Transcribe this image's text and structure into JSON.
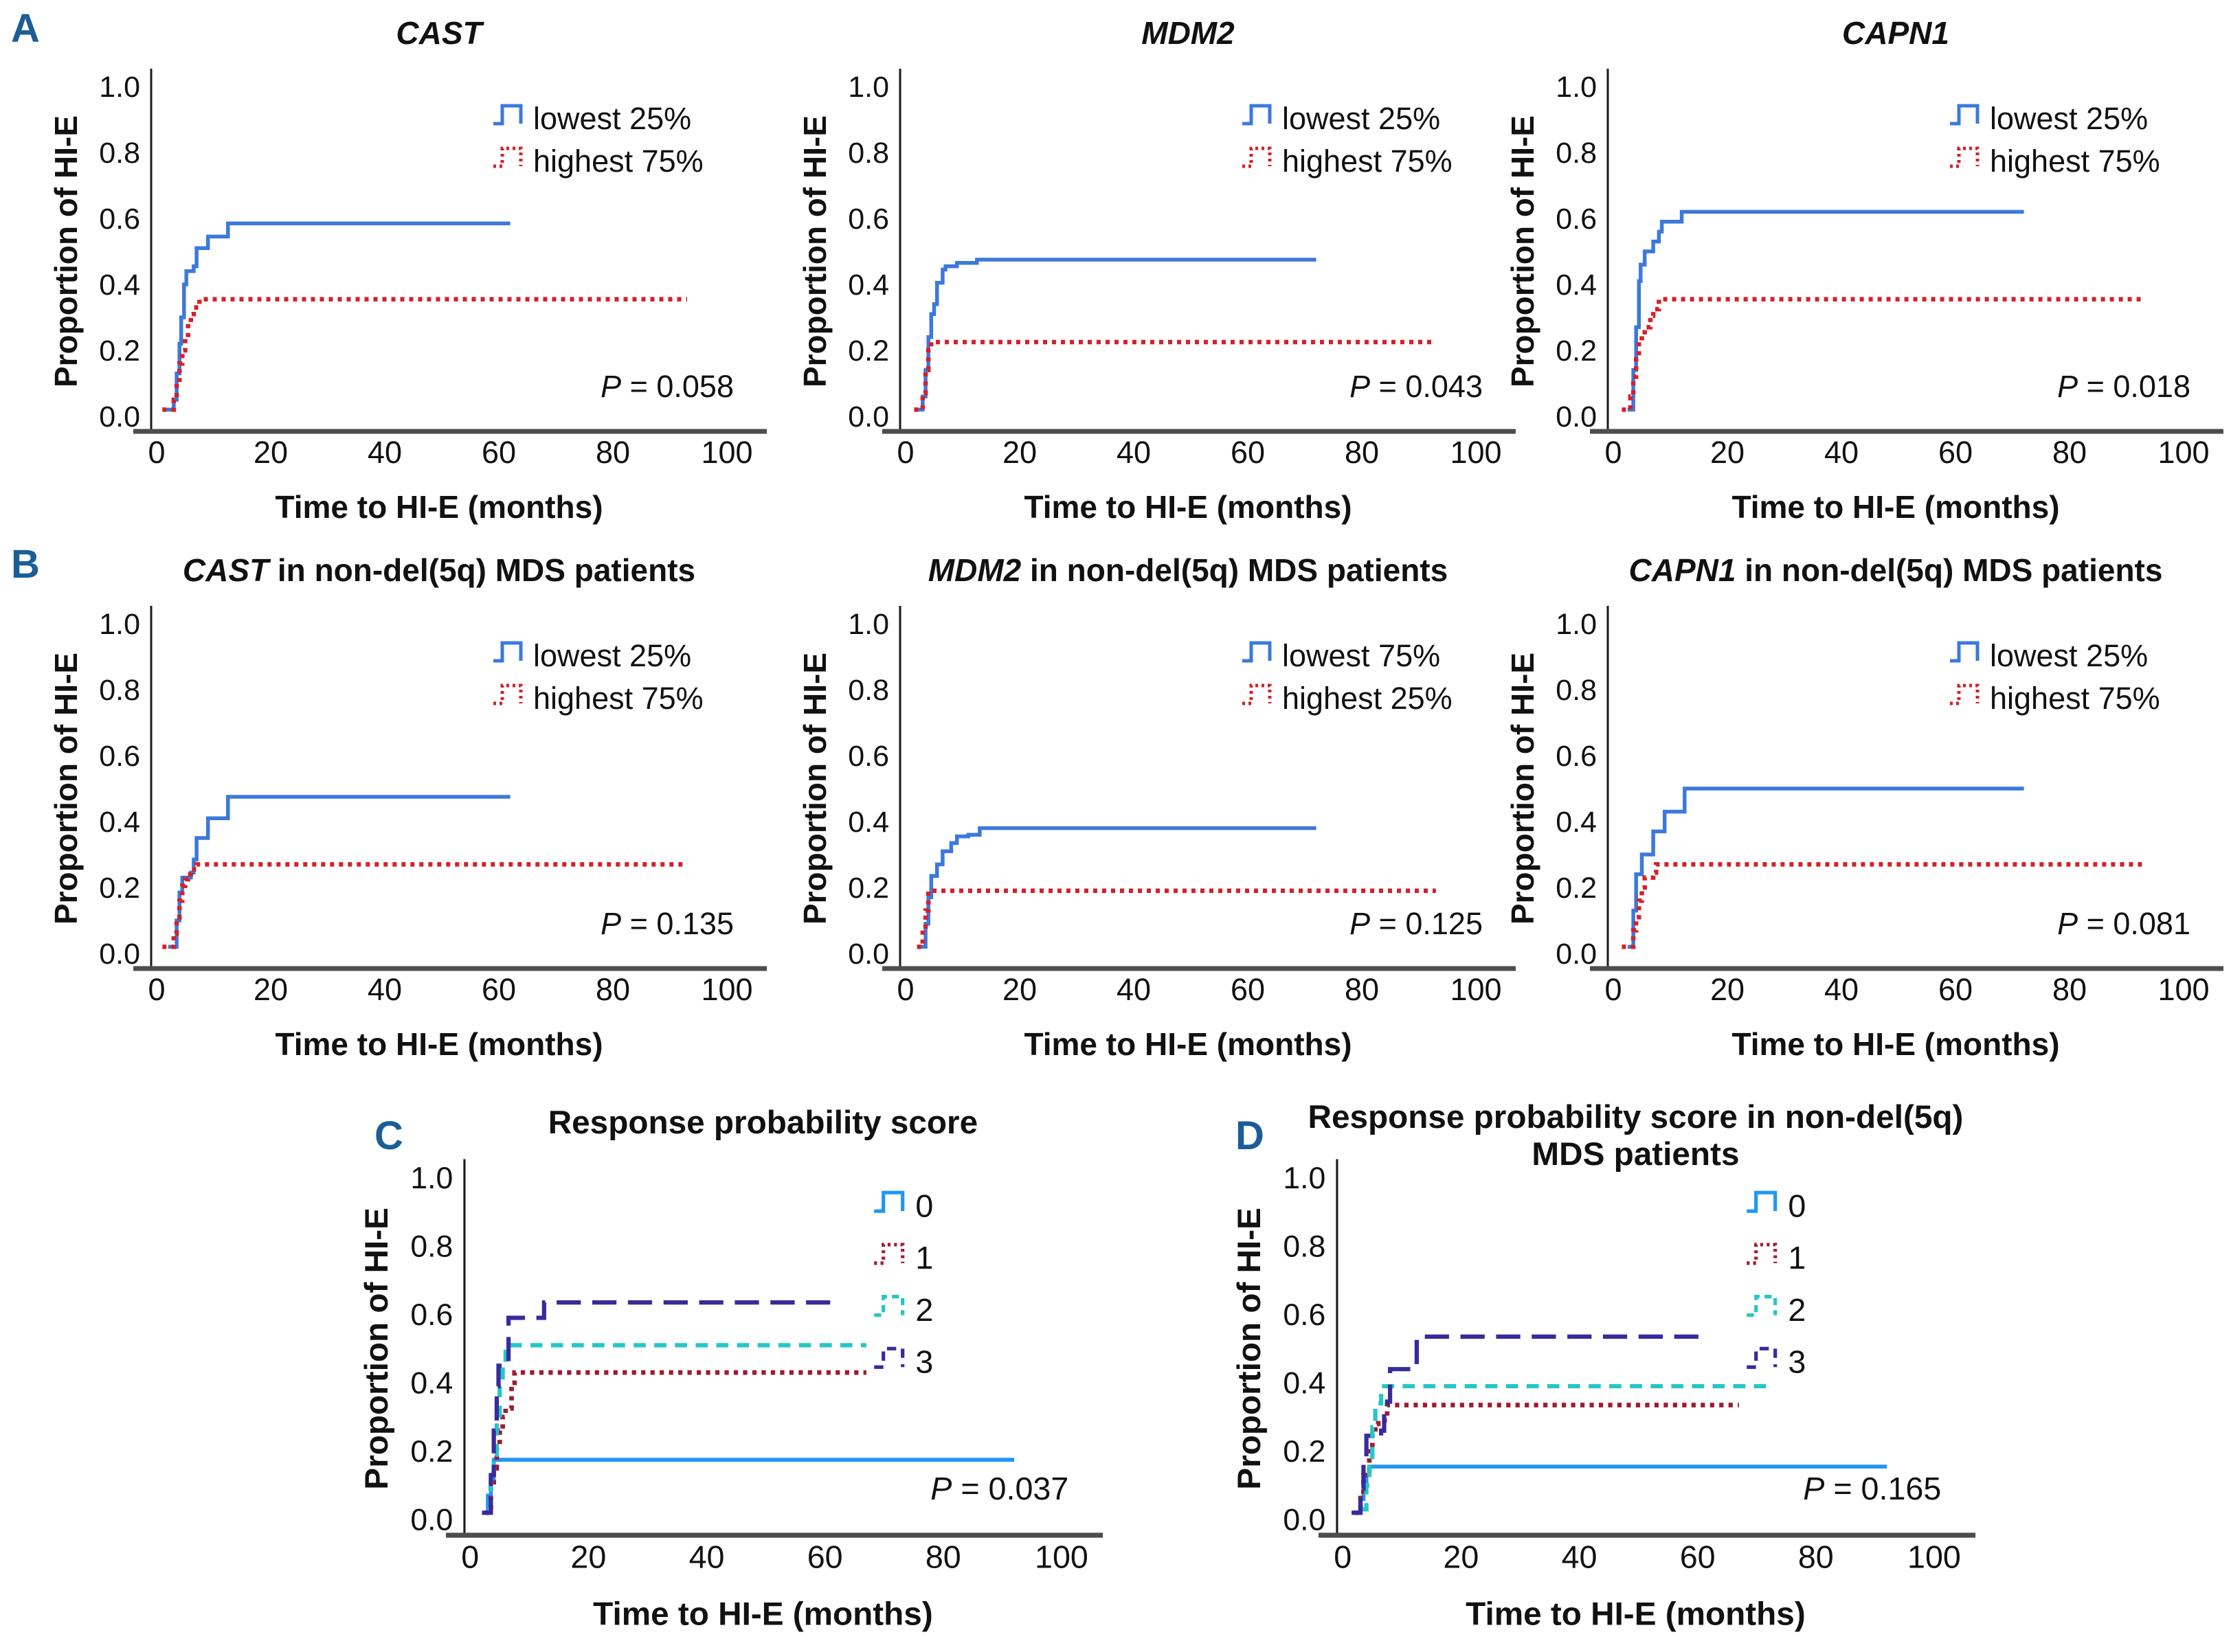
{
  "figure": {
    "panels": [
      {
        "label": "A"
      },
      {
        "label": "B"
      },
      {
        "label": "C"
      },
      {
        "label": "D"
      }
    ],
    "panel_label_color": "#1B5E97",
    "background": "#ffffff"
  },
  "axes": {
    "x_label": "Time to HI-E (months)",
    "y_label": "Proportion of HI-E",
    "x_ticks": [
      0,
      20,
      40,
      60,
      80,
      100
    ],
    "y_ticks": [
      "0.0",
      "0.2",
      "0.4",
      "0.6",
      "0.8",
      "1.0"
    ],
    "x_range": [
      0,
      100
    ],
    "y_range": [
      0.0,
      1.0
    ],
    "grid": false,
    "x_axis_line_color": "#4d4d4d",
    "y_axis_line_color": "#1a1a1a"
  },
  "colors": {
    "blue_solid": "#3C79DB",
    "red_dotted": "#D5202A",
    "score0_azure": "#2196F3",
    "score1_maroon": "#9E1C30",
    "score2_turquoise": "#26C6C6",
    "score3_navy": "#382B9B"
  },
  "chart_data": [
    {
      "id": "a-cast",
      "type": "line",
      "title_parts": [
        {
          "t": "CAST",
          "italic": true
        }
      ],
      "title_line2": null,
      "p_value": {
        "symbol": "P",
        "rest": " = 0.058"
      },
      "legend_position": "right",
      "legend": [
        {
          "label": "lowest 25%",
          "color": "#3C79DB",
          "dash": "solid"
        },
        {
          "label": "highest 75%",
          "color": "#D5202A",
          "dash": "dot"
        }
      ],
      "series": [
        {
          "name": "lowest 25%",
          "color": "#3C79DB",
          "dash": "solid",
          "end": 62,
          "points": [
            [
              1.5,
              0.02
            ],
            [
              3,
              0.05
            ],
            [
              3.5,
              0.13
            ],
            [
              4,
              0.22
            ],
            [
              4.3,
              0.3
            ],
            [
              4.8,
              0.4
            ],
            [
              5.2,
              0.44
            ],
            [
              6.5,
              0.455
            ],
            [
              7,
              0.51
            ],
            [
              9,
              0.545
            ],
            [
              12.5,
              0.585
            ]
          ]
        },
        {
          "name": "highest 75%",
          "color": "#D5202A",
          "dash": "dot",
          "end": 93,
          "points": [
            [
              1,
              0.02
            ],
            [
              3,
              0.05
            ],
            [
              3.5,
              0.1
            ],
            [
              4,
              0.16
            ],
            [
              4.5,
              0.2
            ],
            [
              5,
              0.24
            ],
            [
              5.5,
              0.285
            ],
            [
              6,
              0.31
            ],
            [
              6.5,
              0.33
            ],
            [
              7.5,
              0.355
            ]
          ]
        }
      ]
    },
    {
      "id": "a-mdm2",
      "type": "line",
      "title_parts": [
        {
          "t": "MDM2",
          "italic": true
        }
      ],
      "title_line2": null,
      "p_value": {
        "symbol": "P",
        "rest": " = 0.043"
      },
      "legend_position": "right",
      "legend": [
        {
          "label": "lowest 25%",
          "color": "#3C79DB",
          "dash": "solid"
        },
        {
          "label": "highest 75%",
          "color": "#D5202A",
          "dash": "dot"
        }
      ],
      "series": [
        {
          "name": "lowest 25%",
          "color": "#3C79DB",
          "dash": "solid",
          "end": 72,
          "points": [
            [
              2,
              0.02
            ],
            [
              3,
              0.06
            ],
            [
              3.5,
              0.14
            ],
            [
              4,
              0.24
            ],
            [
              4.5,
              0.31
            ],
            [
              5,
              0.34
            ],
            [
              5.5,
              0.405
            ],
            [
              6.5,
              0.445
            ],
            [
              7,
              0.455
            ],
            [
              9,
              0.465
            ],
            [
              12.5,
              0.475
            ]
          ]
        },
        {
          "name": "highest 75%",
          "color": "#D5202A",
          "dash": "dot",
          "end": 93,
          "points": [
            [
              1.5,
              0.02
            ],
            [
              3,
              0.07
            ],
            [
              3.5,
              0.14
            ],
            [
              4,
              0.2
            ],
            [
              4.5,
              0.225
            ]
          ]
        }
      ]
    },
    {
      "id": "a-capn1",
      "type": "line",
      "title_parts": [
        {
          "t": "CAPN1",
          "italic": true
        }
      ],
      "title_line2": null,
      "p_value": {
        "symbol": "P",
        "rest": " = 0.018"
      },
      "legend_position": "right",
      "legend": [
        {
          "label": "lowest 25%",
          "color": "#3C79DB",
          "dash": "solid"
        },
        {
          "label": "highest 75%",
          "color": "#D5202A",
          "dash": "dot"
        }
      ],
      "series": [
        {
          "name": "lowest 25%",
          "color": "#3C79DB",
          "dash": "solid",
          "end": 72,
          "points": [
            [
              2.5,
              0.02
            ],
            [
              3.5,
              0.14
            ],
            [
              4,
              0.27
            ],
            [
              4.5,
              0.41
            ],
            [
              4.8,
              0.46
            ],
            [
              5.5,
              0.5
            ],
            [
              7,
              0.53
            ],
            [
              8,
              0.56
            ],
            [
              8.5,
              0.59
            ],
            [
              12,
              0.62
            ]
          ]
        },
        {
          "name": "highest 75%",
          "color": "#D5202A",
          "dash": "dot",
          "end": 93,
          "points": [
            [
              1.5,
              0.02
            ],
            [
              3,
              0.06
            ],
            [
              3.5,
              0.12
            ],
            [
              4,
              0.18
            ],
            [
              4.5,
              0.23
            ],
            [
              5,
              0.255
            ],
            [
              5.5,
              0.27
            ],
            [
              6.5,
              0.305
            ],
            [
              7,
              0.325
            ],
            [
              8,
              0.355
            ]
          ]
        }
      ]
    },
    {
      "id": "b-cast",
      "type": "line",
      "title_parts": [
        {
          "t": "CAST",
          "italic": true
        },
        {
          "t": " in non-del(5q) MDS patients",
          "italic": false
        }
      ],
      "title_line2": null,
      "p_value": {
        "symbol": "P",
        "rest": " = 0.135"
      },
      "legend_position": "right",
      "legend": [
        {
          "label": "lowest 25%",
          "color": "#3C79DB",
          "dash": "solid"
        },
        {
          "label": "highest 75%",
          "color": "#D5202A",
          "dash": "dot"
        }
      ],
      "series": [
        {
          "name": "lowest 25%",
          "color": "#3C79DB",
          "dash": "solid",
          "end": 62,
          "points": [
            [
              2,
              0.02
            ],
            [
              3.5,
              0.1
            ],
            [
              4,
              0.185
            ],
            [
              4.5,
              0.23
            ],
            [
              6,
              0.245
            ],
            [
              6.5,
              0.285
            ],
            [
              7,
              0.35
            ],
            [
              9,
              0.41
            ],
            [
              12.5,
              0.475
            ]
          ]
        },
        {
          "name": "highest 75%",
          "color": "#D5202A",
          "dash": "dot",
          "end": 93,
          "points": [
            [
              1,
              0.02
            ],
            [
              3,
              0.06
            ],
            [
              3.5,
              0.11
            ],
            [
              4,
              0.16
            ],
            [
              4.5,
              0.205
            ],
            [
              5,
              0.225
            ],
            [
              5.5,
              0.24
            ],
            [
              6,
              0.255
            ],
            [
              7,
              0.27
            ]
          ]
        }
      ]
    },
    {
      "id": "b-mdm2",
      "type": "line",
      "title_parts": [
        {
          "t": "MDM2",
          "italic": true
        },
        {
          "t": " in non-del(5q) MDS patients",
          "italic": false
        }
      ],
      "title_line2": null,
      "p_value": {
        "symbol": "P",
        "rest": " = 0.125"
      },
      "legend_position": "right",
      "legend": [
        {
          "label": "lowest 75%",
          "color": "#3C79DB",
          "dash": "solid"
        },
        {
          "label": "highest 25%",
          "color": "#D5202A",
          "dash": "dot"
        }
      ],
      "series": [
        {
          "name": "lowest 75%",
          "color": "#3C79DB",
          "dash": "solid",
          "end": 72,
          "points": [
            [
              2.5,
              0.02
            ],
            [
              3.5,
              0.09
            ],
            [
              4,
              0.17
            ],
            [
              4.5,
              0.235
            ],
            [
              5.5,
              0.27
            ],
            [
              6.5,
              0.31
            ],
            [
              8,
              0.335
            ],
            [
              9,
              0.355
            ],
            [
              11,
              0.36
            ],
            [
              13,
              0.38
            ]
          ]
        },
        {
          "name": "highest 25%",
          "color": "#D5202A",
          "dash": "dot",
          "end": 93,
          "points": [
            [
              2,
              0.02
            ],
            [
              3,
              0.07
            ],
            [
              3.5,
              0.13
            ],
            [
              4,
              0.19
            ]
          ]
        }
      ]
    },
    {
      "id": "b-capn1",
      "type": "line",
      "title_parts": [
        {
          "t": "CAPN1",
          "italic": true
        },
        {
          "t": " in non-del(5q) MDS patients",
          "italic": false
        }
      ],
      "title_line2": null,
      "p_value": {
        "symbol": "P",
        "rest": " = 0.081"
      },
      "legend_position": "right",
      "legend": [
        {
          "label": "lowest 25%",
          "color": "#3C79DB",
          "dash": "solid"
        },
        {
          "label": "highest 75%",
          "color": "#D5202A",
          "dash": "dot"
        }
      ],
      "series": [
        {
          "name": "lowest 25%",
          "color": "#3C79DB",
          "dash": "solid",
          "end": 72,
          "points": [
            [
              2.5,
              0.02
            ],
            [
              3.5,
              0.13
            ],
            [
              4,
              0.24
            ],
            [
              5,
              0.3
            ],
            [
              7,
              0.37
            ],
            [
              9,
              0.43
            ],
            [
              12.5,
              0.5
            ]
          ]
        },
        {
          "name": "highest 75%",
          "color": "#D5202A",
          "dash": "dot",
          "end": 93,
          "points": [
            [
              1.5,
              0.02
            ],
            [
              3.5,
              0.07
            ],
            [
              4,
              0.11
            ],
            [
              4.5,
              0.16
            ],
            [
              5,
              0.2
            ],
            [
              5.5,
              0.23
            ],
            [
              7,
              0.245
            ],
            [
              7.5,
              0.27
            ]
          ]
        }
      ]
    },
    {
      "id": "c-score",
      "type": "line",
      "title_parts": [
        {
          "t": "Response probability score",
          "italic": false
        }
      ],
      "title_line2": null,
      "p_value": {
        "symbol": "P",
        "rest": " = 0.037"
      },
      "legend_position": "right-wide",
      "legend": [
        {
          "label": "0",
          "color": "#2196F3",
          "dash": "solid"
        },
        {
          "label": "1",
          "color": "#9E1C30",
          "dash": "dot"
        },
        {
          "label": "2",
          "color": "#26C6C6",
          "dash": "dash"
        },
        {
          "label": "3",
          "color": "#382B9B",
          "dash": "longdash"
        }
      ],
      "series": [
        {
          "name": "0",
          "color": "#2196F3",
          "dash": "solid",
          "end": 92,
          "points": [
            [
              2.5,
              0.02
            ],
            [
              3,
              0.07
            ],
            [
              3.5,
              0.12
            ],
            [
              4,
              0.175
            ]
          ]
        },
        {
          "name": "1",
          "color": "#9E1C30",
          "dash": "dot",
          "end": 67,
          "points": [
            [
              2.5,
              0.02
            ],
            [
              3.5,
              0.09
            ],
            [
              4,
              0.15
            ],
            [
              4.5,
              0.21
            ],
            [
              5,
              0.26
            ],
            [
              5.5,
              0.3
            ],
            [
              6,
              0.325
            ],
            [
              7,
              0.4
            ],
            [
              7.5,
              0.43
            ]
          ]
        },
        {
          "name": "2",
          "color": "#26C6C6",
          "dash": "dash",
          "end": 67,
          "points": [
            [
              3,
              0.03
            ],
            [
              3.5,
              0.11
            ],
            [
              4,
              0.19
            ],
            [
              4.5,
              0.29
            ],
            [
              5,
              0.39
            ],
            [
              5.5,
              0.46
            ],
            [
              6,
              0.51
            ]
          ]
        },
        {
          "name": "3",
          "color": "#382B9B",
          "dash": "longdash",
          "end": 62,
          "points": [
            [
              2,
              0.02
            ],
            [
              3.5,
              0.13
            ],
            [
              4,
              0.26
            ],
            [
              4.5,
              0.39
            ],
            [
              4.8,
              0.45
            ],
            [
              6.5,
              0.59
            ],
            [
              12.5,
              0.635
            ]
          ]
        }
      ]
    },
    {
      "id": "d-score",
      "type": "line",
      "title_parts": [
        {
          "t": "Response probability score in non-del(5q)",
          "italic": false
        }
      ],
      "title_line2": "MDS patients",
      "p_value": {
        "symbol": "P",
        "rest": " = 0.165"
      },
      "legend_position": "right-wide",
      "legend": [
        {
          "label": "0",
          "color": "#2196F3",
          "dash": "solid"
        },
        {
          "label": "1",
          "color": "#9E1C30",
          "dash": "dot"
        },
        {
          "label": "2",
          "color": "#26C6C6",
          "dash": "dash"
        },
        {
          "label": "3",
          "color": "#382B9B",
          "dash": "longdash"
        }
      ],
      "series": [
        {
          "name": "0",
          "color": "#2196F3",
          "dash": "solid",
          "end": 92,
          "points": [
            [
              2,
              0.02
            ],
            [
              3,
              0.06
            ],
            [
              3.5,
              0.1
            ],
            [
              4,
              0.13
            ],
            [
              4.5,
              0.155
            ]
          ]
        },
        {
          "name": "1",
          "color": "#9E1C30",
          "dash": "dot",
          "end": 67,
          "points": [
            [
              2,
              0.02
            ],
            [
              3,
              0.07
            ],
            [
              3.5,
              0.13
            ],
            [
              4.5,
              0.21
            ],
            [
              5,
              0.25
            ],
            [
              5.5,
              0.28
            ],
            [
              6,
              0.29
            ],
            [
              7.5,
              0.335
            ]
          ]
        },
        {
          "name": "2",
          "color": "#26C6C6",
          "dash": "dash",
          "end": 72,
          "points": [
            [
              3,
              0.03
            ],
            [
              4,
              0.1
            ],
            [
              4.5,
              0.17
            ],
            [
              5,
              0.27
            ],
            [
              5.5,
              0.34
            ],
            [
              6.5,
              0.39
            ]
          ]
        },
        {
          "name": "3",
          "color": "#382B9B",
          "dash": "longdash",
          "end": 62,
          "points": [
            [
              1.5,
              0.02
            ],
            [
              3,
              0.09
            ],
            [
              3.5,
              0.17
            ],
            [
              4,
              0.245
            ],
            [
              6.5,
              0.26
            ],
            [
              7,
              0.315
            ],
            [
              7.5,
              0.345
            ],
            [
              8,
              0.44
            ],
            [
              12.5,
              0.535
            ]
          ]
        }
      ]
    }
  ]
}
